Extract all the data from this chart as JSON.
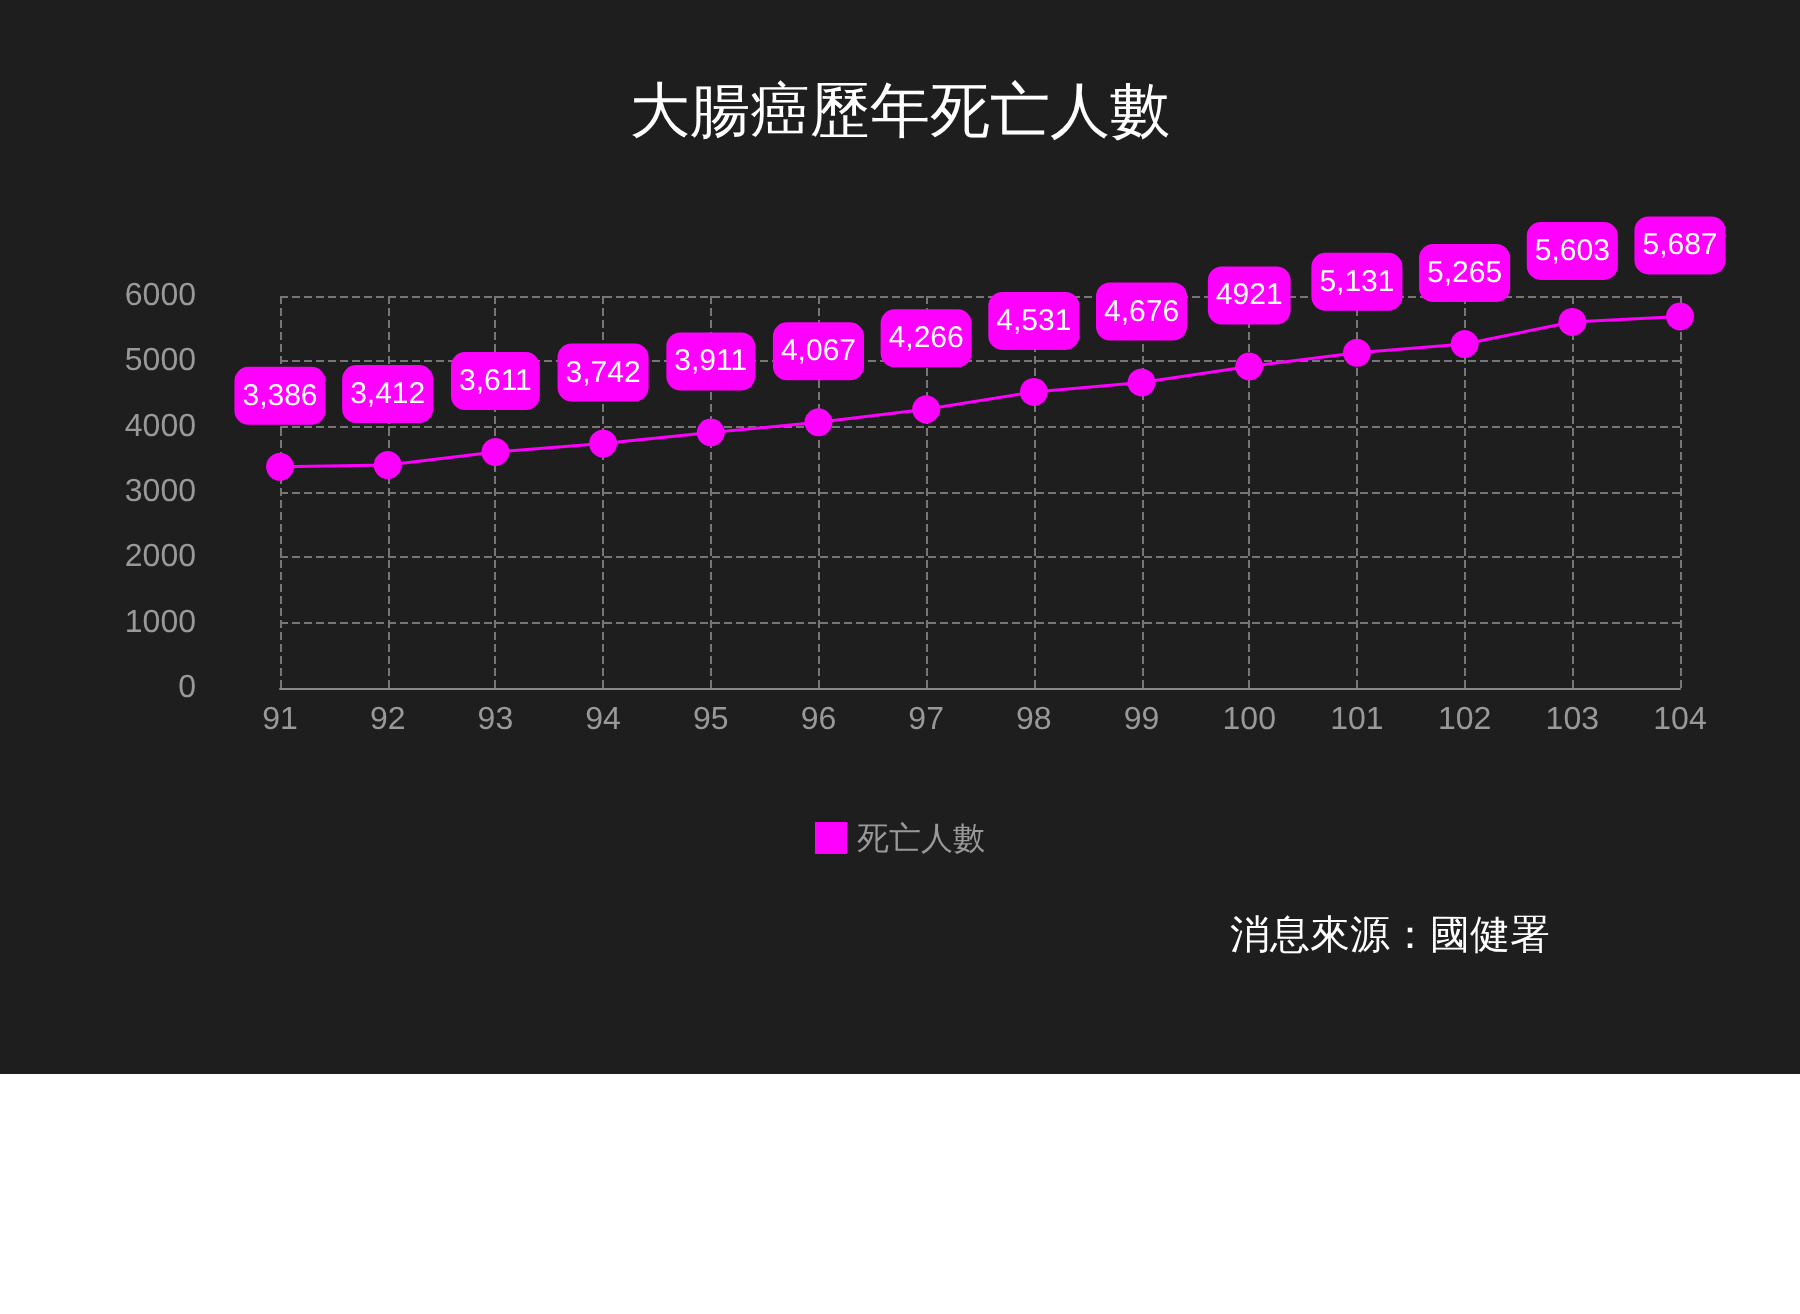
{
  "chart_data": {
    "type": "line",
    "title": "大腸癌歷年死亡人數",
    "categories": [
      "91",
      "92",
      "93",
      "94",
      "95",
      "96",
      "97",
      "98",
      "99",
      "100",
      "101",
      "102",
      "103",
      "104"
    ],
    "series": [
      {
        "name": "死亡人數",
        "color": "#ff00ff",
        "values": [
          3386,
          3412,
          3611,
          3742,
          3911,
          4067,
          4266,
          4531,
          4676,
          4921,
          5131,
          5265,
          5603,
          5687
        ],
        "value_labels": [
          "3,386",
          "3,412",
          "3,611",
          "3,742",
          "3,911",
          "4,067",
          "4,266",
          "4,531",
          "4,676",
          "4921",
          "5,131",
          "5,265",
          "5,603",
          "5,687"
        ]
      }
    ],
    "ylim": [
      0,
      6000
    ],
    "yticks": [
      0,
      1000,
      2000,
      3000,
      4000,
      5000,
      6000
    ],
    "grid": true,
    "legend": "bottom",
    "marker": "circle",
    "line_style": "solid",
    "annotations": [
      "消息來源：國健署"
    ]
  }
}
